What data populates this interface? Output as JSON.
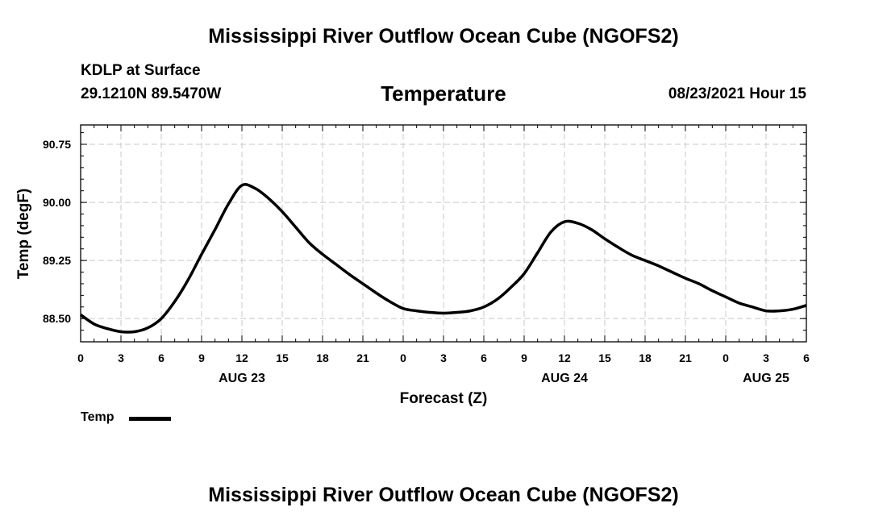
{
  "header": {
    "title": "Mississippi River Outflow Ocean Cube (NGOFS2)",
    "station": "KDLP at Surface",
    "coords": "29.1210N  89.5470W",
    "variable": "Temperature",
    "datetime": "08/23/2021 Hour 15"
  },
  "footer": {
    "title": "Mississippi River Outflow Ocean Cube (NGOFS2)"
  },
  "legend": {
    "label": "Temp"
  },
  "chart_data": {
    "type": "line",
    "ylabel": "Temp (degF)",
    "xlabel": "Forecast (Z)",
    "ylim": [
      88.2,
      91.0
    ],
    "xlim": [
      0,
      54
    ],
    "x_ticks": [
      0,
      3,
      6,
      9,
      12,
      15,
      18,
      21,
      24,
      27,
      30,
      33,
      36,
      39,
      42,
      45,
      48,
      51,
      54
    ],
    "x_tick_labels": [
      "0",
      "3",
      "6",
      "9",
      "12",
      "15",
      "18",
      "21",
      "0",
      "3",
      "6",
      "9",
      "12",
      "15",
      "18",
      "21",
      "0",
      "3",
      "6"
    ],
    "date_labels": [
      {
        "x": 12,
        "label": "AUG 23"
      },
      {
        "x": 36,
        "label": "AUG 24"
      },
      {
        "x": 51,
        "label": "AUG 25"
      }
    ],
    "y_ticks": [
      88.5,
      89.25,
      90.0,
      90.75
    ],
    "y_tick_labels": [
      "88.50",
      "89.25",
      "90.00",
      "90.75"
    ],
    "grid": true,
    "legend_position": "bottom-left",
    "series": [
      {
        "name": "Temp",
        "color": "#000000",
        "x": [
          0,
          1,
          2,
          3,
          4,
          5,
          6,
          7,
          8,
          9,
          10,
          11,
          12,
          13,
          14,
          15,
          16,
          17,
          18,
          19,
          20,
          21,
          22,
          23,
          24,
          25,
          26,
          27,
          28,
          29,
          30,
          31,
          32,
          33,
          34,
          35,
          36,
          37,
          38,
          39,
          40,
          41,
          42,
          43,
          44,
          45,
          46,
          47,
          48,
          49,
          50,
          51,
          52,
          53,
          54
        ],
        "y": [
          88.55,
          88.43,
          88.37,
          88.33,
          88.33,
          88.38,
          88.5,
          88.72,
          89.0,
          89.33,
          89.65,
          89.98,
          90.22,
          90.18,
          90.05,
          89.88,
          89.68,
          89.48,
          89.33,
          89.2,
          89.07,
          88.95,
          88.83,
          88.72,
          88.63,
          88.6,
          88.58,
          88.57,
          88.58,
          88.6,
          88.65,
          88.75,
          88.9,
          89.08,
          89.35,
          89.62,
          89.75,
          89.73,
          89.65,
          89.53,
          89.42,
          89.32,
          89.25,
          89.18,
          89.1,
          89.02,
          88.95,
          88.86,
          88.78,
          88.7,
          88.65,
          88.6,
          88.6,
          88.62,
          88.67
        ]
      }
    ]
  }
}
